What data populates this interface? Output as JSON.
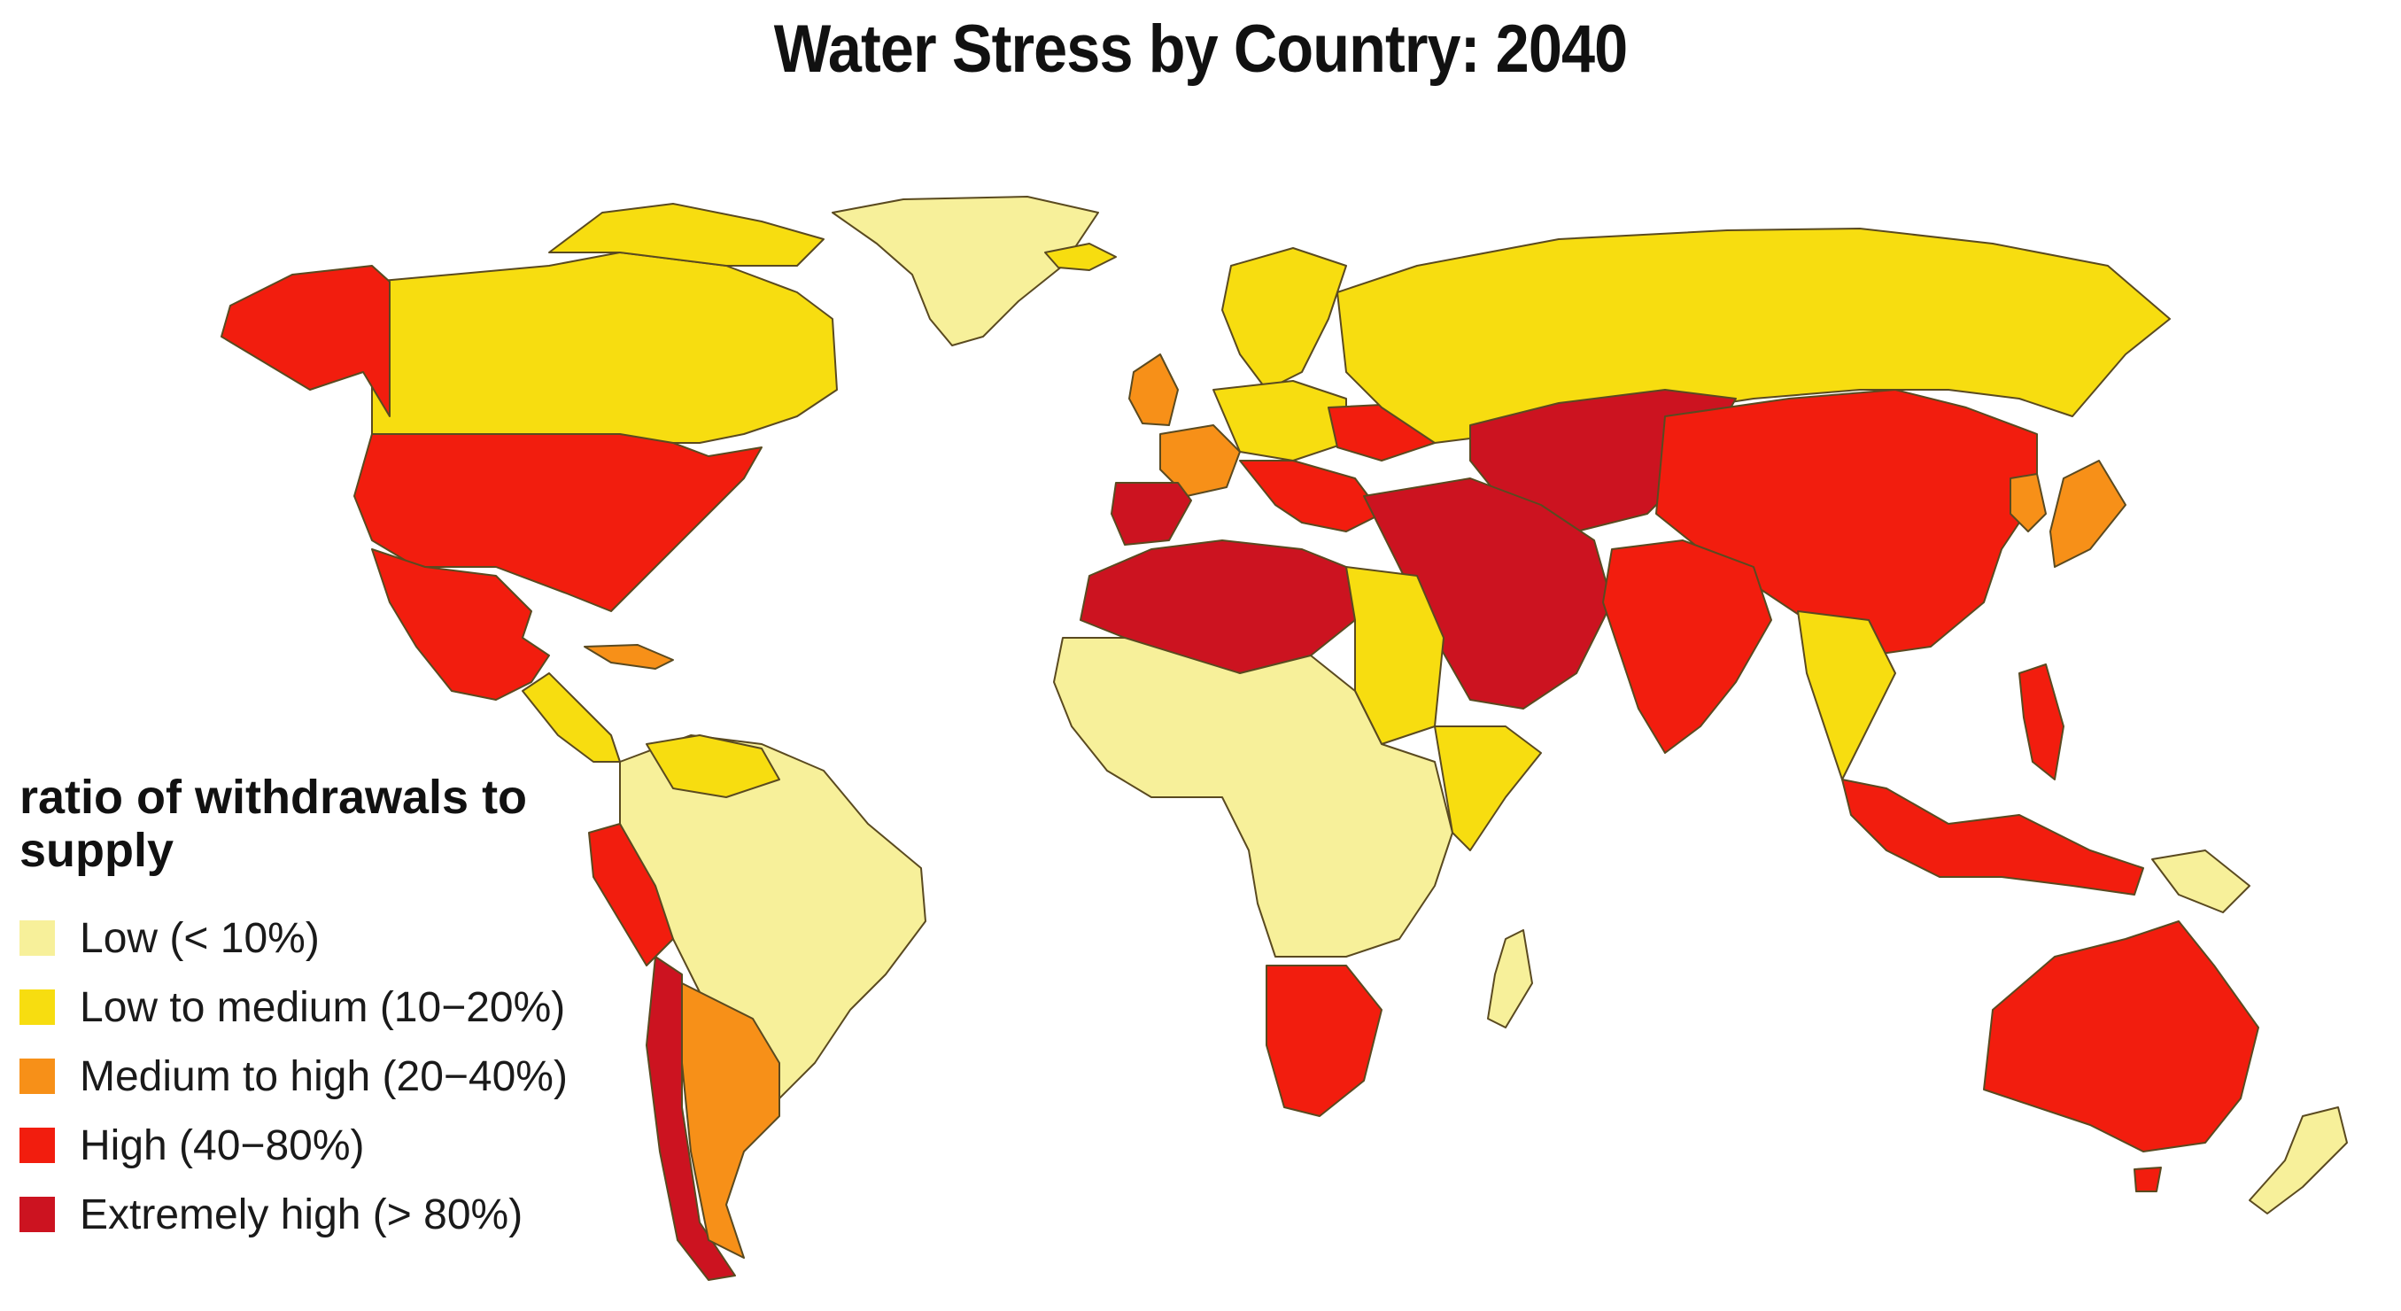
{
  "title": "Water Stress by Country: 2040",
  "legend": {
    "title": "ratio of withdrawals to supply",
    "items": [
      {
        "key": "low",
        "label": "Low (< 10%)",
        "color": "#f7f09a"
      },
      {
        "key": "low_medium",
        "label": "Low to medium (10−20%)",
        "color": "#f7dd10"
      },
      {
        "key": "medium_high",
        "label": "Medium to high (20−40%)",
        "color": "#f79018"
      },
      {
        "key": "high",
        "label": "High (40−80%)",
        "color": "#f21d0e"
      },
      {
        "key": "extremely_high",
        "label": "Extremely high (> 80%)",
        "color": "#cc1320"
      }
    ]
  },
  "regions": [
    {
      "name": "greenland",
      "class": "low"
    },
    {
      "name": "canada",
      "class": "low_medium"
    },
    {
      "name": "alaska-usa",
      "class": "high"
    },
    {
      "name": "usa",
      "class": "high"
    },
    {
      "name": "mexico",
      "class": "high"
    },
    {
      "name": "central-america",
      "class": "low_medium"
    },
    {
      "name": "cuba",
      "class": "medium_high"
    },
    {
      "name": "south-america-north",
      "class": "low"
    },
    {
      "name": "venezuela-guyana",
      "class": "low_medium"
    },
    {
      "name": "peru-west-coast",
      "class": "high"
    },
    {
      "name": "chile",
      "class": "extremely_high"
    },
    {
      "name": "argentina",
      "class": "medium_high"
    },
    {
      "name": "iceland",
      "class": "low_medium"
    },
    {
      "name": "uk-ireland",
      "class": "medium_high"
    },
    {
      "name": "scandinavia",
      "class": "low_medium"
    },
    {
      "name": "france",
      "class": "medium_high"
    },
    {
      "name": "iberia",
      "class": "extremely_high"
    },
    {
      "name": "italy-balkans",
      "class": "high"
    },
    {
      "name": "central-europe",
      "class": "low_medium"
    },
    {
      "name": "ukraine",
      "class": "high"
    },
    {
      "name": "russia",
      "class": "low_medium"
    },
    {
      "name": "central-asia",
      "class": "extremely_high"
    },
    {
      "name": "middle-east",
      "class": "extremely_high"
    },
    {
      "name": "north-africa",
      "class": "extremely_high"
    },
    {
      "name": "egypt-sudan",
      "class": "low_medium"
    },
    {
      "name": "sahel-central-africa",
      "class": "low"
    },
    {
      "name": "east-africa-horn",
      "class": "low_medium"
    },
    {
      "name": "southern-africa",
      "class": "high"
    },
    {
      "name": "madagascar",
      "class": "low"
    },
    {
      "name": "india",
      "class": "high"
    },
    {
      "name": "china",
      "class": "high"
    },
    {
      "name": "southeast-asia",
      "class": "low_medium"
    },
    {
      "name": "indonesia",
      "class": "high"
    },
    {
      "name": "japan",
      "class": "medium_high"
    },
    {
      "name": "korea",
      "class": "medium_high"
    },
    {
      "name": "philippines",
      "class": "high"
    },
    {
      "name": "papua-new-guinea",
      "class": "low"
    },
    {
      "name": "australia",
      "class": "high"
    },
    {
      "name": "new-zealand",
      "class": "low"
    }
  ]
}
